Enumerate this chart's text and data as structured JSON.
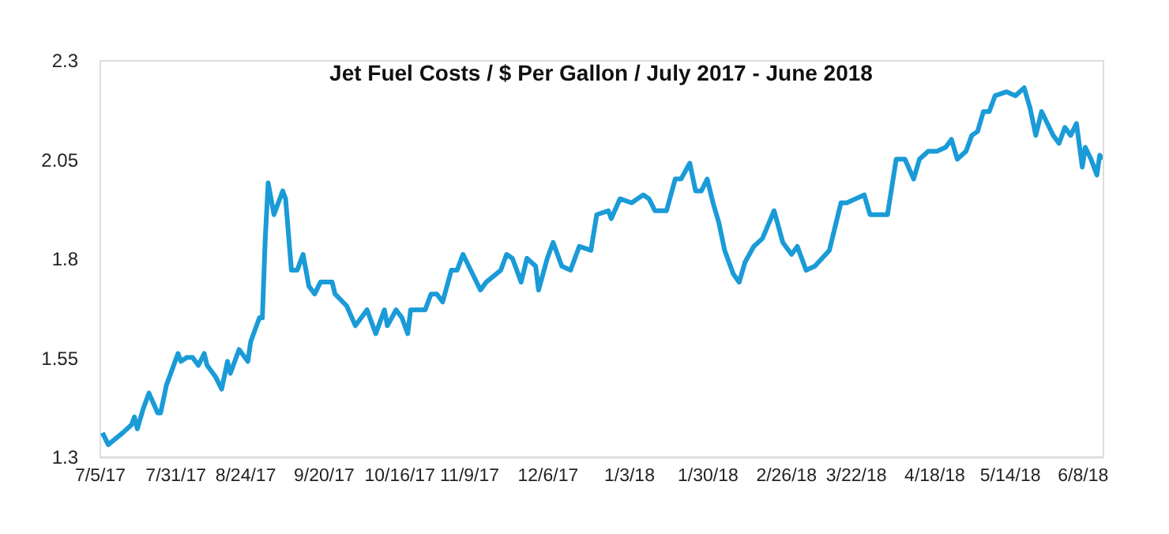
{
  "chart_data": {
    "type": "line",
    "title": "Jet Fuel Costs / $ Per Gallon / July 2017 - June 2018",
    "x": [
      "2017-07-06",
      "2017-07-08",
      "2017-07-13",
      "2017-07-16",
      "2017-07-17",
      "2017-07-18",
      "2017-07-20",
      "2017-07-22",
      "2017-07-25",
      "2017-07-26",
      "2017-07-28",
      "2017-07-29",
      "2017-07-31",
      "2017-08-01",
      "2017-08-02",
      "2017-08-04",
      "2017-08-06",
      "2017-08-08",
      "2017-08-10",
      "2017-08-11",
      "2017-08-14",
      "2017-08-16",
      "2017-08-18",
      "2017-08-19",
      "2017-08-22",
      "2017-08-25",
      "2017-08-26",
      "2017-08-29",
      "2017-08-30",
      "2017-08-31",
      "2017-09-01",
      "2017-09-03",
      "2017-09-06",
      "2017-09-07",
      "2017-09-09",
      "2017-09-11",
      "2017-09-13",
      "2017-09-15",
      "2017-09-17",
      "2017-09-19",
      "2017-09-23",
      "2017-09-24",
      "2017-09-28",
      "2017-10-01",
      "2017-10-05",
      "2017-10-08",
      "2017-10-11",
      "2017-10-12",
      "2017-10-15",
      "2017-10-17",
      "2017-10-19",
      "2017-10-20",
      "2017-10-23",
      "2017-10-25",
      "2017-10-27",
      "2017-10-29",
      "2017-10-31",
      "2017-11-03",
      "2017-11-05",
      "2017-11-07",
      "2017-11-09",
      "2017-11-13",
      "2017-11-15",
      "2017-11-20",
      "2017-11-22",
      "2017-11-24",
      "2017-11-27",
      "2017-11-29",
      "2017-12-02",
      "2017-12-03",
      "2017-12-06",
      "2017-12-08",
      "2017-12-11",
      "2017-12-14",
      "2017-12-17",
      "2017-12-21",
      "2017-12-23",
      "2017-12-27",
      "2017-12-28",
      "2017-12-31",
      "2018-01-04",
      "2018-01-08",
      "2018-01-10",
      "2018-01-12",
      "2018-01-16",
      "2018-01-19",
      "2018-01-21",
      "2018-01-24",
      "2018-01-26",
      "2018-01-28",
      "2018-01-30",
      "2018-02-01",
      "2018-02-03",
      "2018-02-05",
      "2018-02-08",
      "2018-02-10",
      "2018-02-12",
      "2018-02-15",
      "2018-02-18",
      "2018-02-22",
      "2018-02-25",
      "2018-02-28",
      "2018-03-02",
      "2018-03-05",
      "2018-03-08",
      "2018-03-13",
      "2018-03-17",
      "2018-03-19",
      "2018-03-25",
      "2018-03-27",
      "2018-04-02",
      "2018-04-05",
      "2018-04-08",
      "2018-04-11",
      "2018-04-13",
      "2018-04-16",
      "2018-04-19",
      "2018-04-22",
      "2018-04-24",
      "2018-04-26",
      "2018-04-29",
      "2018-05-01",
      "2018-05-03",
      "2018-05-05",
      "2018-05-07",
      "2018-05-09",
      "2018-05-13",
      "2018-05-16",
      "2018-05-19",
      "2018-05-21",
      "2018-05-23",
      "2018-05-25",
      "2018-05-29",
      "2018-05-31",
      "2018-06-02",
      "2018-06-04",
      "2018-06-06",
      "2018-06-08",
      "2018-06-09",
      "2018-06-11",
      "2018-06-13",
      "2018-06-14",
      "2018-06-15"
    ],
    "series": [
      {
        "color": "#1a9bd7",
        "values": [
          1.36,
          1.33,
          1.36,
          1.38,
          1.4,
          1.37,
          1.42,
          1.46,
          1.41,
          1.41,
          1.48,
          1.5,
          1.54,
          1.56,
          1.54,
          1.55,
          1.55,
          1.53,
          1.56,
          1.53,
          1.5,
          1.47,
          1.54,
          1.51,
          1.57,
          1.54,
          1.59,
          1.65,
          1.65,
          1.85,
          1.99,
          1.91,
          1.97,
          1.95,
          1.77,
          1.77,
          1.81,
          1.73,
          1.71,
          1.74,
          1.74,
          1.71,
          1.68,
          1.63,
          1.67,
          1.61,
          1.67,
          1.63,
          1.67,
          1.65,
          1.61,
          1.67,
          1.67,
          1.67,
          1.71,
          1.71,
          1.69,
          1.77,
          1.77,
          1.81,
          1.78,
          1.72,
          1.74,
          1.77,
          1.81,
          1.8,
          1.74,
          1.8,
          1.78,
          1.72,
          1.8,
          1.84,
          1.78,
          1.77,
          1.83,
          1.82,
          1.91,
          1.92,
          1.9,
          1.95,
          1.94,
          1.96,
          1.95,
          1.92,
          1.92,
          2.0,
          2.0,
          2.04,
          1.97,
          1.97,
          2.0,
          1.94,
          1.89,
          1.82,
          1.76,
          1.74,
          1.79,
          1.83,
          1.85,
          1.92,
          1.84,
          1.81,
          1.83,
          1.77,
          1.78,
          1.82,
          1.94,
          1.94,
          1.96,
          1.91,
          1.91,
          2.05,
          2.05,
          2.0,
          2.05,
          2.07,
          2.07,
          2.08,
          2.1,
          2.05,
          2.07,
          2.11,
          2.12,
          2.17,
          2.17,
          2.21,
          2.22,
          2.21,
          2.23,
          2.18,
          2.11,
          2.17,
          2.11,
          2.09,
          2.13,
          2.11,
          2.14,
          2.03,
          2.08,
          2.05,
          2.01,
          2.06,
          2.05
        ]
      }
    ],
    "xlim": [
      "2017-07-05",
      "2018-06-15"
    ],
    "xticks": [
      {
        "value": "2017-07-05",
        "label": "7/5/17"
      },
      {
        "value": "2017-07-31",
        "label": "7/31/17"
      },
      {
        "value": "2017-08-24",
        "label": "8/24/17"
      },
      {
        "value": "2017-09-20",
        "label": "9/20/17"
      },
      {
        "value": "2017-10-16",
        "label": "10/16/17"
      },
      {
        "value": "2017-11-09",
        "label": "11/9/17"
      },
      {
        "value": "2017-12-06",
        "label": "12/6/17"
      },
      {
        "value": "2018-01-03",
        "label": "1/3/18"
      },
      {
        "value": "2018-01-30",
        "label": "1/30/18"
      },
      {
        "value": "2018-02-26",
        "label": "2/26/18"
      },
      {
        "value": "2018-03-22",
        "label": "3/22/18"
      },
      {
        "value": "2018-04-18",
        "label": "4/18/18"
      },
      {
        "value": "2018-05-14",
        "label": "5/14/18"
      },
      {
        "value": "2018-06-08",
        "label": "6/8/18"
      }
    ],
    "ylim": [
      1.3,
      2.3
    ],
    "yticks": [
      1.3,
      1.55,
      1.8,
      2.05,
      2.3
    ],
    "grid": false,
    "marker": "none",
    "line_style": "solid"
  }
}
